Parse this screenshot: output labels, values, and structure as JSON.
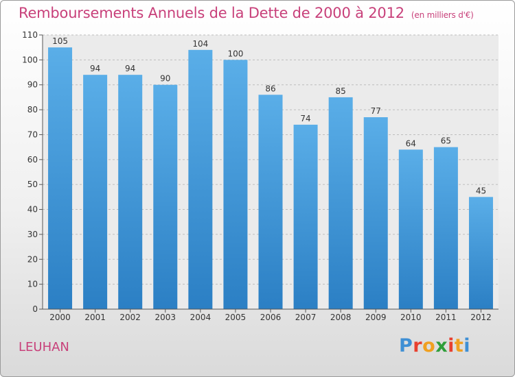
{
  "title": "Remboursements Annuels de la Dette de 2000 à 2012",
  "unit": "(en milliers d'€)",
  "location": "LEUHAN",
  "logo": {
    "letters": [
      {
        "char": "P",
        "color": "#3f8fd4"
      },
      {
        "char": "r",
        "color": "#e8402f"
      },
      {
        "char": "o",
        "color": "#f0a020"
      },
      {
        "char": "x",
        "color": "#2f9e3a"
      },
      {
        "char": "i",
        "color": "#e8402f"
      },
      {
        "char": "t",
        "color": "#f0a020"
      },
      {
        "char": "i",
        "color": "#3f8fd4"
      }
    ]
  },
  "chart_data": {
    "type": "bar",
    "categories": [
      "2000",
      "2001",
      "2002",
      "2003",
      "2004",
      "2005",
      "2006",
      "2007",
      "2008",
      "2009",
      "2010",
      "2011",
      "2012"
    ],
    "values": [
      105,
      94,
      94,
      90,
      104,
      100,
      86,
      74,
      85,
      77,
      64,
      65,
      45
    ],
    "ylim": [
      0,
      110
    ],
    "yticks": [
      0,
      10,
      20,
      30,
      40,
      50,
      60,
      70,
      80,
      90,
      100,
      110
    ],
    "grid": true,
    "bar_color_top": "#5aaee8",
    "bar_color_bottom": "#2b7fc4",
    "title_color": "#c8407a"
  }
}
